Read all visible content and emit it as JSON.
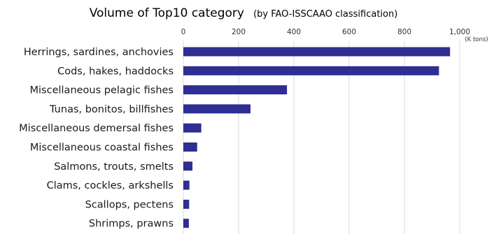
{
  "chart_data": {
    "type": "bar",
    "orientation": "horizontal",
    "title": "Volume of Top10 category",
    "subtitle": "(by FAO-ISSCAAO classification)",
    "unit": "(K tons)",
    "categories": [
      "Herrings, sardines, anchovies",
      "Cods, hakes, haddocks",
      "Miscellaneous pelagic fishes",
      "Tunas, bonitos, billfishes",
      "Miscellaneous demersal fishes",
      "Miscellaneous coastal fishes",
      "Salmons, trouts, smelts",
      "Clams, cockles, arkshells",
      "Scallops, pectens",
      "Shrimps, prawns"
    ],
    "values": [
      965,
      925,
      375,
      243,
      65,
      50,
      33,
      22,
      21,
      20
    ],
    "xlim": [
      0,
      1000
    ],
    "xticks": [
      0,
      200,
      400,
      600,
      800,
      1000
    ],
    "xtick_labels": [
      "0",
      "200",
      "400",
      "600",
      "800",
      "1,000"
    ],
    "grid": true,
    "legend": "none",
    "bar_color": "#2e2e93",
    "grid_color": "#d9d9d9"
  }
}
